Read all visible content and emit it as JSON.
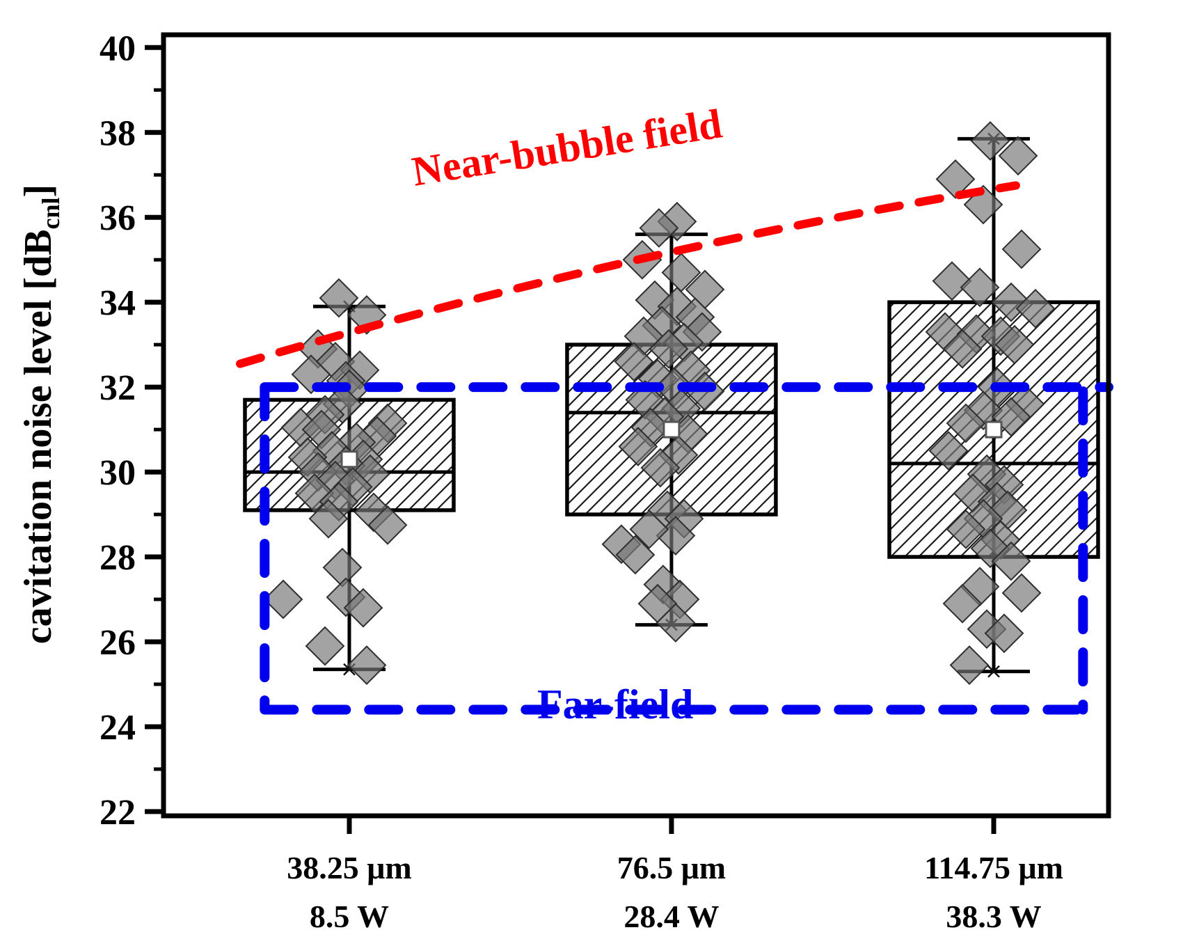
{
  "figure": {
    "y_title": {
      "prefix": "cavitation noise level [dB",
      "subscript": "cnl",
      "suffix": "]"
    },
    "colors": {
      "near_bubble": "#ff0000",
      "far_field": "#0000ee",
      "axis": "#000000",
      "box_fill": "#ffffff",
      "hatch_line": "#1a1a1a",
      "point_fill": "#787878",
      "point_stroke": "#2f2f2f",
      "mean_marker_stroke": "#555555"
    }
  },
  "chart_data": {
    "type": "box",
    "title": "",
    "ylabel": "cavitation noise level [dB cnl]",
    "xlabel": "",
    "ylim": [
      21.9,
      40.3
    ],
    "yticks_major": [
      22,
      24,
      26,
      28,
      30,
      32,
      34,
      36,
      38,
      40
    ],
    "yticks_minor": [
      23,
      25,
      27,
      29,
      31,
      33,
      35,
      37,
      39
    ],
    "grid": false,
    "legend": "none",
    "groups": [
      {
        "label_line1": "38.25 μm",
        "label_line2": "8.5 W",
        "box": {
          "q1": 29.1,
          "median": 30.0,
          "q3": 31.7,
          "whisker_low": 25.35,
          "whisker_high": 33.9,
          "mean": 30.3
        },
        "points": [
          [
            -15,
            34.1
          ],
          [
            25,
            33.7
          ],
          [
            -45,
            32.9
          ],
          [
            -20,
            32.6
          ],
          [
            15,
            32.4
          ],
          [
            -55,
            32.3
          ],
          [
            -5,
            32.15
          ],
          [
            0,
            31.95
          ],
          [
            -10,
            31.6
          ],
          [
            -35,
            31.35
          ],
          [
            55,
            31.15
          ],
          [
            -70,
            31.05
          ],
          [
            -40,
            31.0
          ],
          [
            40,
            30.85
          ],
          [
            10,
            30.7
          ],
          [
            -25,
            30.5
          ],
          [
            -60,
            30.35
          ],
          [
            20,
            30.3
          ],
          [
            -5,
            30.15
          ],
          [
            -45,
            30.0
          ],
          [
            30,
            29.95
          ],
          [
            -20,
            29.8
          ],
          [
            5,
            29.65
          ],
          [
            -50,
            29.5
          ],
          [
            -15,
            29.3
          ],
          [
            35,
            29.05
          ],
          [
            -30,
            28.9
          ],
          [
            55,
            28.75
          ],
          [
            -10,
            27.75
          ],
          [
            -95,
            27.0
          ],
          [
            -5,
            27.05
          ],
          [
            20,
            26.8
          ],
          [
            -35,
            25.9
          ],
          [
            25,
            25.45
          ]
        ]
      },
      {
        "label_line1": "76.5 μm",
        "label_line2": "28.4 W",
        "box": {
          "q1": 29.0,
          "median": 31.4,
          "q3": 33.0,
          "whisker_low": 26.4,
          "whisker_high": 35.6,
          "mean": 31.0
        },
        "points": [
          [
            8,
            35.9
          ],
          [
            -18,
            35.75
          ],
          [
            -42,
            35.0
          ],
          [
            14,
            34.7
          ],
          [
            48,
            34.3
          ],
          [
            -24,
            34.05
          ],
          [
            8,
            33.9
          ],
          [
            34,
            33.65
          ],
          [
            -14,
            33.45
          ],
          [
            44,
            33.3
          ],
          [
            -40,
            33.2
          ],
          [
            18,
            33.05
          ],
          [
            -4,
            32.9
          ],
          [
            -54,
            32.6
          ],
          [
            28,
            32.4
          ],
          [
            -20,
            32.2
          ],
          [
            4,
            32.0
          ],
          [
            48,
            31.9
          ],
          [
            -38,
            31.7
          ],
          [
            14,
            31.5
          ],
          [
            -10,
            31.3
          ],
          [
            -30,
            31.05
          ],
          [
            24,
            30.9
          ],
          [
            -48,
            30.6
          ],
          [
            10,
            30.4
          ],
          [
            -16,
            30.1
          ],
          [
            -6,
            29.1
          ],
          [
            18,
            28.9
          ],
          [
            6,
            28.5
          ],
          [
            -32,
            28.65
          ],
          [
            -72,
            28.3
          ],
          [
            -52,
            28.05
          ],
          [
            -12,
            27.35
          ],
          [
            12,
            27.0
          ],
          [
            -20,
            26.9
          ],
          [
            6,
            26.45
          ]
        ]
      },
      {
        "label_line1": "114.75 μm",
        "label_line2": "38.3 W",
        "box": {
          "q1": 28.0,
          "median": 30.2,
          "q3": 34.0,
          "whisker_low": 25.3,
          "whisker_high": 37.85,
          "mean": 31.0
        },
        "points": [
          [
            -5,
            37.8
          ],
          [
            35,
            37.45
          ],
          [
            -55,
            36.9
          ],
          [
            -15,
            36.3
          ],
          [
            40,
            35.25
          ],
          [
            -60,
            34.5
          ],
          [
            -20,
            34.35
          ],
          [
            25,
            34.0
          ],
          [
            60,
            33.85
          ],
          [
            -70,
            33.3
          ],
          [
            -25,
            33.25
          ],
          [
            10,
            33.2
          ],
          [
            30,
            33.0
          ],
          [
            -45,
            32.9
          ],
          [
            5,
            32.0
          ],
          [
            45,
            31.6
          ],
          [
            -15,
            31.45
          ],
          [
            25,
            31.3
          ],
          [
            -40,
            31.15
          ],
          [
            -65,
            30.5
          ],
          [
            -10,
            29.95
          ],
          [
            15,
            29.7
          ],
          [
            -30,
            29.5
          ],
          [
            5,
            29.3
          ],
          [
            20,
            29.1
          ],
          [
            -15,
            28.9
          ],
          [
            -40,
            28.65
          ],
          [
            10,
            28.4
          ],
          [
            -5,
            28.2
          ],
          [
            25,
            27.9
          ],
          [
            -20,
            27.3
          ],
          [
            40,
            27.15
          ],
          [
            -45,
            26.9
          ],
          [
            -10,
            26.3
          ],
          [
            15,
            26.2
          ],
          [
            -35,
            25.45
          ]
        ]
      }
    ],
    "near_bubble_line": {
      "label": "Near-bubble field",
      "color": "#ff0000",
      "x_start_frac": 0.081,
      "y_start_db": 32.55,
      "x_end_frac": 0.902,
      "y_end_db": 36.75,
      "y_mid_bow_db": 34.95
    },
    "far_field_region": {
      "label": "Far-field",
      "color": "#0000ee",
      "y_top_db": 32.0,
      "y_bottom_db": 24.4,
      "x_left_frac": 0.107,
      "x_right_frac": 0.973,
      "top_line_extends_to_frac": 1.0
    }
  }
}
